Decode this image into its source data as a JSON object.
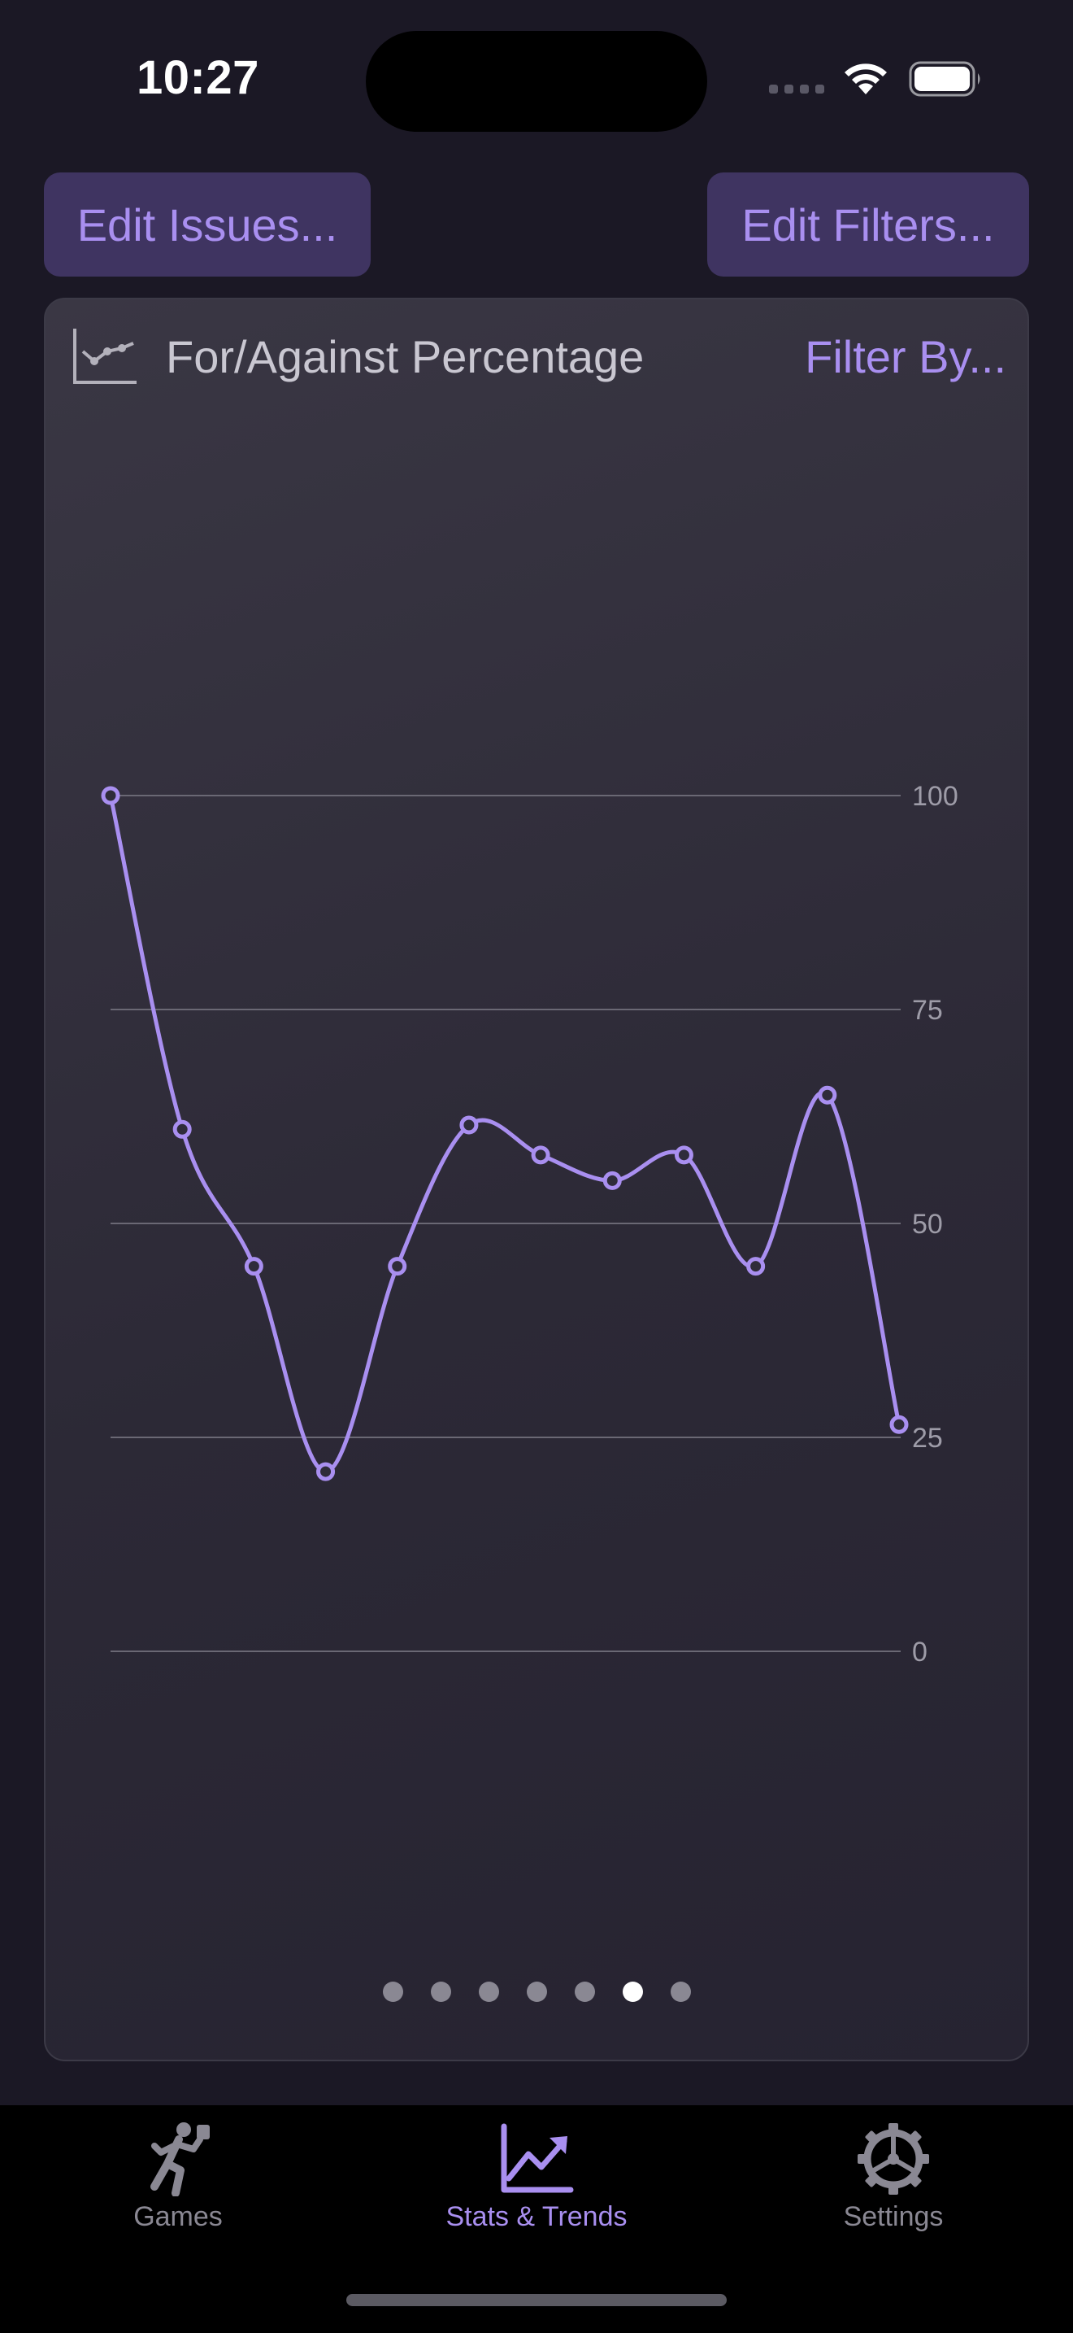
{
  "status_bar": {
    "time": "10:27"
  },
  "toolbar": {
    "edit_issues_label": "Edit Issues...",
    "edit_filters_label": "Edit Filters..."
  },
  "card": {
    "title": "For/Against Percentage",
    "filter_label": "Filter By...",
    "icon": "line-chart-icon"
  },
  "chart_data": {
    "type": "line",
    "x": [
      1,
      2,
      3,
      4,
      5,
      6,
      7,
      8,
      9,
      10,
      11,
      12
    ],
    "series": [
      {
        "values": [
          100,
          61,
          45,
          21,
          45,
          61.5,
          58,
          55,
          58,
          45,
          65,
          26.5
        ]
      }
    ],
    "y_ticks": [
      "100",
      "75",
      "50",
      "25",
      "0"
    ],
    "ylim": [
      0,
      100
    ],
    "grid": true,
    "y_axis_side": "right",
    "line_color": "#a98ff0",
    "interpolation": "smooth"
  },
  "pager": {
    "count": 7,
    "active_index": 5
  },
  "tabs": [
    {
      "label": "Games",
      "icon": "runner-icon",
      "active": false
    },
    {
      "label": "Stats & Trends",
      "icon": "trend-chart-icon",
      "active": true
    },
    {
      "label": "Settings",
      "icon": "gear-icon",
      "active": false
    }
  ],
  "colors": {
    "accent": "#a98ff0",
    "background": "#1b1825",
    "button_bg": "#3f3461",
    "inactive_tab": "#8a8893"
  }
}
